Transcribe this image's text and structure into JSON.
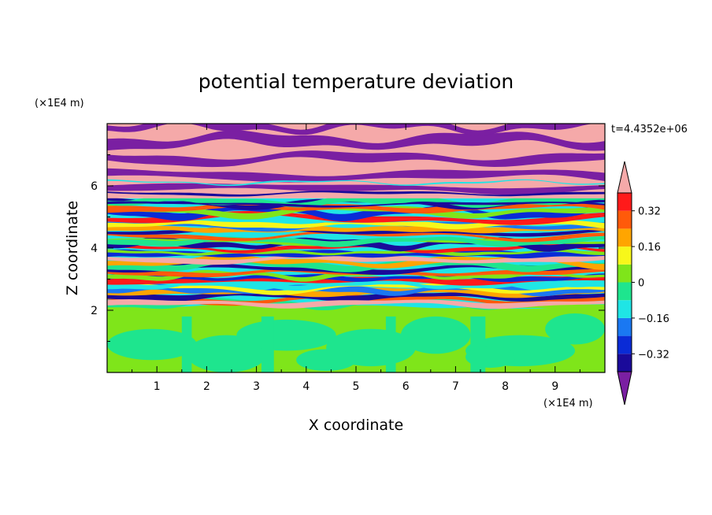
{
  "chart_data": {
    "type": "heatmap",
    "title": "potential temperature deviation",
    "xlabel": "X coordinate",
    "ylabel": "Z coordinate",
    "x_unit": "(×1E4 m)",
    "z_unit": "(×1E4 m)",
    "time_label": "t=4.4352e+06",
    "xlim": [
      0,
      10
    ],
    "ylim": [
      0,
      8
    ],
    "x_ticks": [
      1,
      2,
      3,
      4,
      5,
      6,
      7,
      8,
      9
    ],
    "y_ticks": [
      2,
      4,
      6
    ],
    "colorbar": {
      "levels": [
        -0.4,
        -0.32,
        -0.24,
        -0.16,
        -0.08,
        0,
        0.08,
        0.16,
        0.24,
        0.32,
        0.4
      ],
      "labeled_ticks": [
        "0.32",
        "0.16",
        "0",
        "−0.16",
        "−0.32"
      ],
      "colors": [
        "#7a1fa2",
        "#1a0a9a",
        "#0a2bd6",
        "#1a78f2",
        "#1fe5e5",
        "#1ee58e",
        "#7fe51a",
        "#f7f71a",
        "#ffa500",
        "#ff5a0a",
        "#ff1a1a",
        "#f5a9a9"
      ],
      "extend": "both"
    },
    "field_description_layers": [
      {
        "z_range": [
          0,
          2
        ],
        "dominant": [
          "#1ee58e",
          "#7fe51a"
        ]
      },
      {
        "z_range": [
          2,
          5.5
        ],
        "dominant": [
          "#1fe5e5",
          "#7fe51a",
          "#ff5a0a",
          "#1a0a9a",
          "#ffa500"
        ]
      },
      {
        "z_range": [
          5.5,
          8
        ],
        "dominant": [
          "#f5a9a9",
          "#7a1fa2"
        ]
      }
    ]
  }
}
